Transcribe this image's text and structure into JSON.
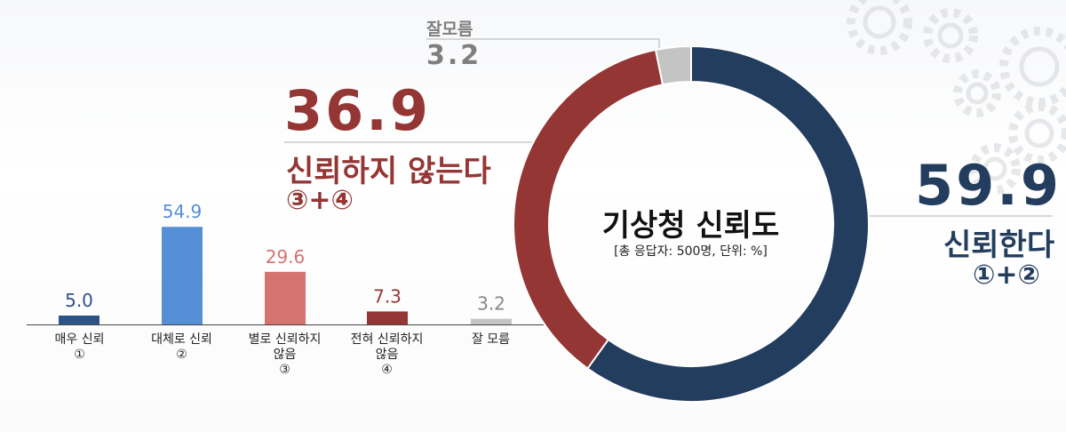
{
  "chart_data": [
    {
      "type": "pie",
      "title": "기상청 신뢰도",
      "subtitle": "[총 응답자: 500명, 단위: %]",
      "slices": [
        {
          "label": "신뢰한다",
          "value": 59.9,
          "color": "#233d5e"
        },
        {
          "label": "신뢰하지 않는다",
          "value": 36.9,
          "color": "#943634"
        },
        {
          "label": "잘모름",
          "value": 3.2,
          "color": "#c4c4c4"
        }
      ],
      "annotations": {
        "trust": {
          "value": "59.9",
          "label": "신뢰한다",
          "sub": "①+②"
        },
        "distrust": {
          "value": "36.9",
          "label": "신뢰하지 않는다",
          "sub": "③+④"
        },
        "unknown": {
          "value": "3.2",
          "label": "잘모름"
        }
      }
    },
    {
      "type": "bar",
      "categories": [
        {
          "line1": "매우 신뢰",
          "line2": "①",
          "line3": ""
        },
        {
          "line1": "대체로 신뢰",
          "line2": "②",
          "line3": ""
        },
        {
          "line1": "별로 신뢰하지",
          "line2": "않음",
          "line3": "③"
        },
        {
          "line1": "전혀 신뢰하지",
          "line2": "않음",
          "line3": "④"
        },
        {
          "line1": "잘 모름",
          "line2": "",
          "line3": ""
        }
      ],
      "values": [
        5.0,
        54.9,
        29.6,
        7.3,
        3.2
      ],
      "value_labels": [
        "5.0",
        "54.9",
        "29.6",
        "7.3",
        "3.2"
      ],
      "colors": [
        "#2e5388",
        "#568fd6",
        "#d57371",
        "#943634",
        "#c4c4c4"
      ],
      "label_colors": [
        "#2e5388",
        "#568fd6",
        "#d57371",
        "#943634",
        "#888888"
      ],
      "ylim": [
        0,
        60
      ]
    }
  ]
}
